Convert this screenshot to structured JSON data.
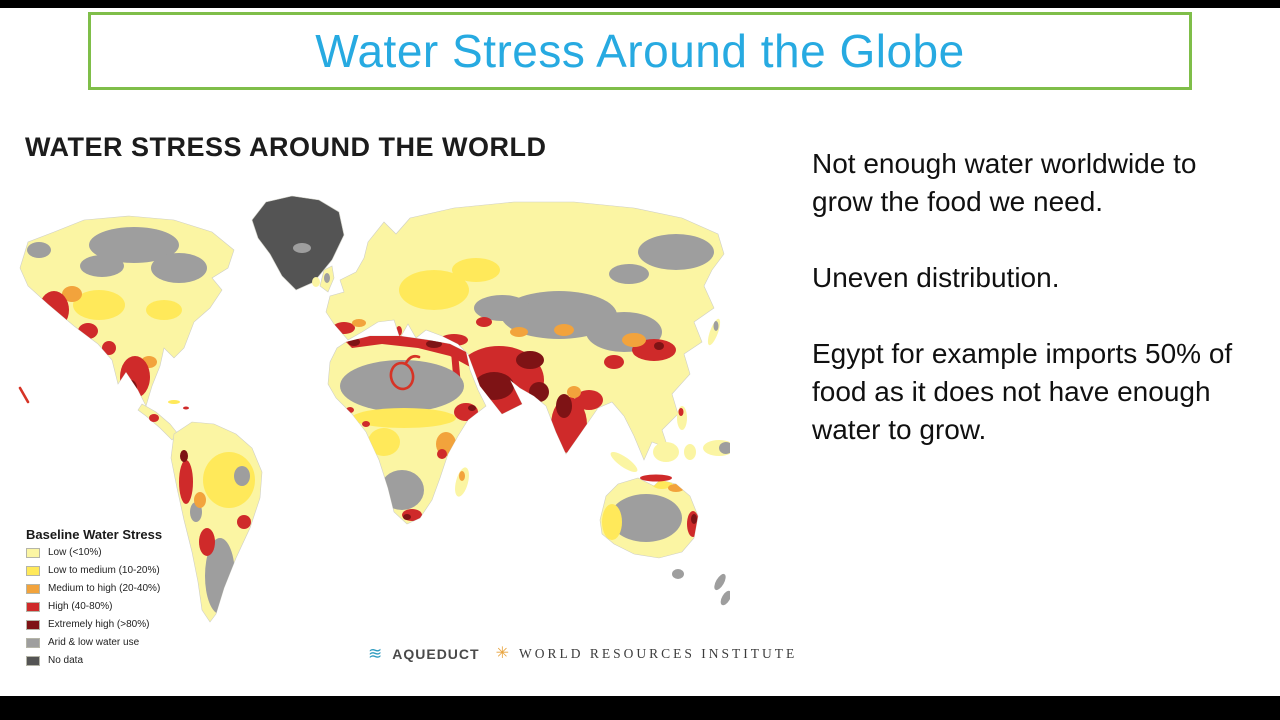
{
  "slide": {
    "title": "Water Stress Around the Globe",
    "title_color": "#27AAE1",
    "title_border_color": "#7FBE49"
  },
  "map_panel": {
    "heading": "WATER STRESS AROUND THE WORLD",
    "legend": {
      "title": "Baseline Water Stress",
      "items": [
        {
          "label": "Low (<10%)",
          "color": "#FBF5A3"
        },
        {
          "label": "Low to medium (10-20%)",
          "color": "#FFE95A"
        },
        {
          "label": "Medium to high (20-40%)",
          "color": "#F2A33C"
        },
        {
          "label": "High (40-80%)",
          "color": "#CF2A2A"
        },
        {
          "label": "Extremely high (>80%)",
          "color": "#7E1315"
        },
        {
          "label": "Arid & low water use",
          "color": "#9E9E9E"
        },
        {
          "label": "No data",
          "color": "#545454"
        }
      ]
    },
    "annotation": {
      "description": "hand-drawn red circle over north-east Africa",
      "color": "#D63426"
    },
    "credits": {
      "aqueduct_icon": "≋",
      "aqueduct_label": "AQUEDUCT",
      "wri_icon": "✳",
      "wri_label": "WORLD RESOURCES INSTITUTE"
    }
  },
  "notes": {
    "paragraphs": [
      "Not enough water worldwide to grow the food we need.",
      "Uneven distribution.",
      "Egypt for example imports 50% of food as it does not have enough water to grow."
    ]
  }
}
